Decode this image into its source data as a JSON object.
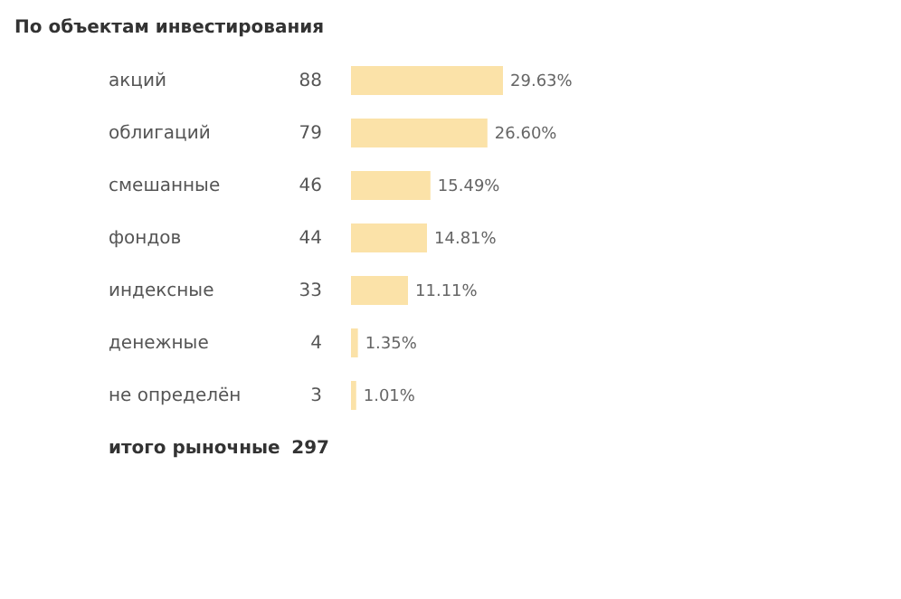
{
  "chart_data": {
    "type": "bar",
    "orientation": "horizontal",
    "title": "По объектам инвестирования",
    "categories": [
      "акций",
      "облигаций",
      "смешанные",
      "фондов",
      "индексные",
      "денежные",
      "не определён"
    ],
    "values": [
      88,
      79,
      46,
      44,
      33,
      4,
      3
    ],
    "color": "#fbe2a8",
    "data_labels": true,
    "annotations": [
      {
        "text": "29.63%",
        "x": 88,
        "y": "акций"
      },
      {
        "text": "26.60%",
        "x": 79,
        "y": "облигаций"
      },
      {
        "text": "15.49%",
        "x": 46,
        "y": "смешанные"
      },
      {
        "text": "14.81%",
        "x": 44,
        "y": "фондов"
      },
      {
        "text": "11.11%",
        "x": 33,
        "y": "индексные"
      },
      {
        "text": "1.35%",
        "x": 4,
        "y": "денежные"
      },
      {
        "text": "1.01%",
        "x": 3,
        "y": "не определён"
      },
      "итого рыночные",
      "297"
    ]
  }
}
